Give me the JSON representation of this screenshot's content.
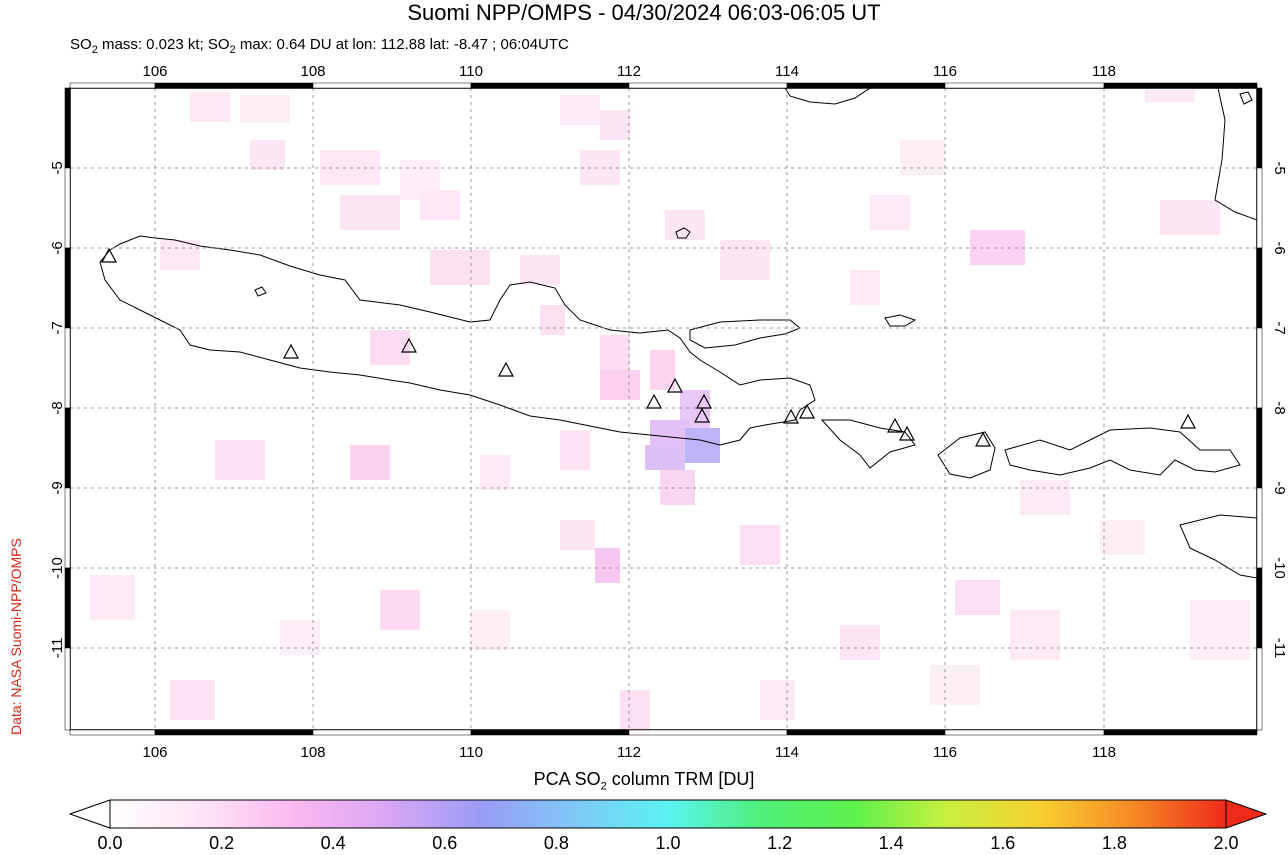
{
  "title": "Suomi NPP/OMPS - 04/30/2024 06:03-06:05 UT",
  "subtitle": {
    "prefix": "SO",
    "sub": "2",
    "mass_text": " mass: 0.023 kt; SO",
    "sub2": "2",
    "max_text": " max: 0.64 DU at lon: 112.88 lat: -8.47 ; 06:04UTC"
  },
  "credit": "Data: NASA Suomi-NPP/OMPS",
  "colorbar": {
    "label_prefix": "PCA SO",
    "label_sub": "2",
    "label_suffix": " column TRM [DU]",
    "ticks": [
      "0.0",
      "0.2",
      "0.4",
      "0.6",
      "0.8",
      "1.0",
      "1.2",
      "1.4",
      "1.6",
      "1.8",
      "2.0"
    ],
    "colors": [
      "#ffffff",
      "#fde3f4",
      "#fbb8f0",
      "#d8a6f5",
      "#9a9cf5",
      "#7fc8f7",
      "#5af2f2",
      "#4ff07a",
      "#5df04a",
      "#c9f040",
      "#f7d030",
      "#f58a25",
      "#ee2a1a"
    ]
  },
  "map": {
    "lon_ticks": [
      "106",
      "108",
      "110",
      "112",
      "114",
      "116",
      "118"
    ],
    "lat_ticks": [
      "-5",
      "-6",
      "-7",
      "-8",
      "-9",
      "-10",
      "-11"
    ],
    "volcano_icon": "triangle-icon"
  }
}
